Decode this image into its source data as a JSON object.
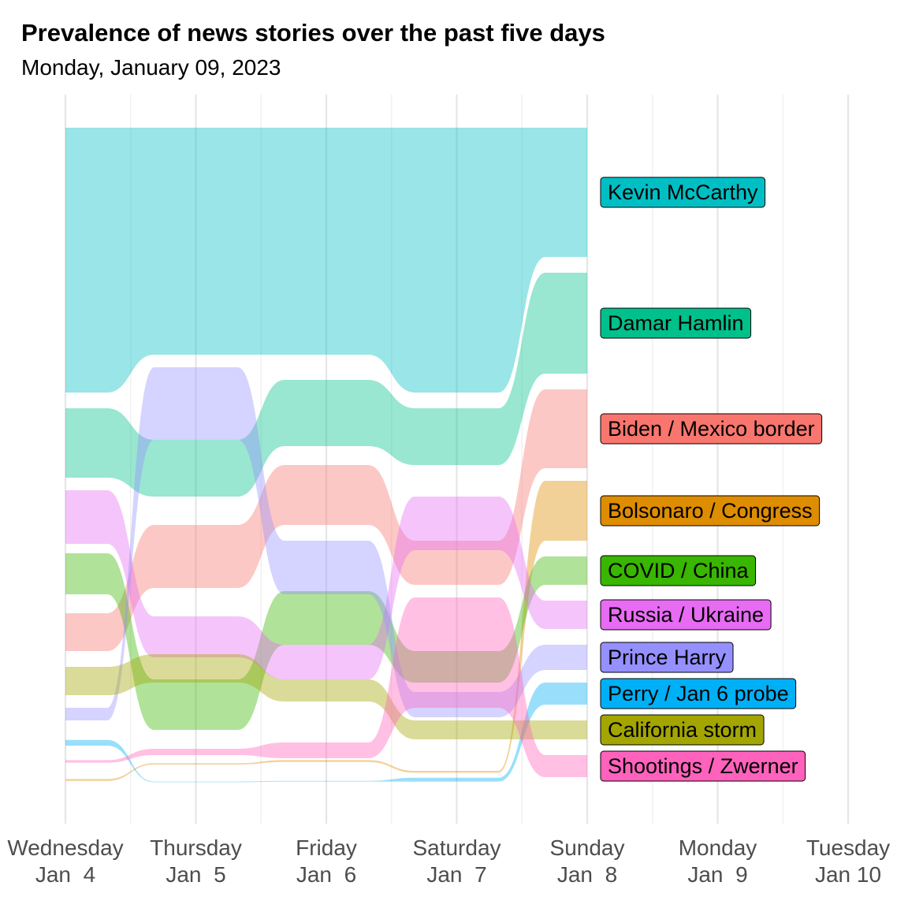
{
  "title": "Prevalence of news stories over the past five days",
  "subtitle": "Monday, January 09, 2023",
  "chart_data": {
    "type": "area",
    "subtype": "bump-streamgraph (stories ranked by daily prevalence, bands sized by prevalence)",
    "grid": true,
    "legend": "labels at right end of series",
    "x_ticks": [
      {
        "line1": "Wednesday",
        "line2": "Jan  4"
      },
      {
        "line1": "Thursday",
        "line2": "Jan  5"
      },
      {
        "line1": "Friday",
        "line2": "Jan  6"
      },
      {
        "line1": "Saturday",
        "line2": "Jan  7"
      },
      {
        "line1": "Sunday",
        "line2": "Jan  8"
      },
      {
        "line1": "Monday",
        "line2": "Jan  9"
      },
      {
        "line1": "Tuesday",
        "line2": "Jan 10"
      }
    ],
    "days_with_data": [
      "Jan 4",
      "Jan 5",
      "Jan 6",
      "Jan 7",
      "Jan 8"
    ],
    "y_range": [
      0,
      1
    ],
    "series": [
      {
        "name": "Kevin McCarthy",
        "color": "#00BFC4",
        "bands": [
          [
            0.0,
            0.42
          ],
          [
            0.0,
            0.36
          ],
          [
            0.0,
            0.36
          ],
          [
            0.0,
            0.42
          ],
          [
            0.0,
            0.205
          ]
        ]
      },
      {
        "name": "Damar Hamlin",
        "color": "#00C08B",
        "bands": [
          [
            0.445,
            0.555
          ],
          [
            0.495,
            0.585
          ],
          [
            0.4,
            0.505
          ],
          [
            0.445,
            0.535
          ],
          [
            0.23,
            0.39
          ]
        ]
      },
      {
        "name": "Biden / Mexico border",
        "color": "#F8766D",
        "bands": [
          [
            0.77,
            0.83
          ],
          [
            0.63,
            0.73
          ],
          [
            0.535,
            0.63
          ],
          [
            0.655,
            0.725
          ],
          [
            0.415,
            0.54
          ]
        ]
      },
      {
        "name": "Bolsonaro / Congress",
        "color": "#DE8C00",
        "bands": [
          [
            1.033,
            1.036
          ],
          [
            1.008,
            1.01
          ],
          [
            1.003,
            1.006
          ],
          [
            1.02,
            1.023
          ],
          [
            0.56,
            0.655
          ]
        ]
      },
      {
        "name": "COVID / China",
        "color": "#39B600",
        "bands": [
          [
            0.675,
            0.74
          ],
          [
            0.875,
            0.955
          ],
          [
            0.735,
            0.82
          ],
          [
            0.83,
            0.88
          ],
          [
            0.68,
            0.725
          ]
        ]
      },
      {
        "name": "Russia / Ukraine",
        "color": "#E76BF3",
        "bands": [
          [
            0.575,
            0.66
          ],
          [
            0.775,
            0.84
          ],
          [
            0.82,
            0.875
          ],
          [
            0.585,
            0.67
          ],
          [
            0.75,
            0.795
          ]
        ]
      },
      {
        "name": "Prince Harry",
        "color": "#9590FF",
        "bands": [
          [
            0.92,
            0.94
          ],
          [
            0.38,
            0.495
          ],
          [
            0.655,
            0.74
          ],
          [
            0.895,
            0.935
          ],
          [
            0.82,
            0.86
          ]
        ]
      },
      {
        "name": "Perry / Jan 6 probe",
        "color": "#00B0F6",
        "bands": [
          [
            0.971,
            0.98
          ],
          [
            1.037,
            1.038
          ],
          [
            1.036,
            1.037
          ],
          [
            1.031,
            1.037
          ],
          [
            0.88,
            0.915
          ]
        ]
      },
      {
        "name": "California storm",
        "color": "#A3A500",
        "bands": [
          [
            0.855,
            0.9
          ],
          [
            0.835,
            0.88
          ],
          [
            0.875,
            0.91
          ],
          [
            0.94,
            0.97
          ],
          [
            0.94,
            0.97
          ]
        ]
      },
      {
        "name": "Shootings / Zwerner",
        "color": "#FF62BC",
        "bands": [
          [
            1.003,
            1.007
          ],
          [
            0.985,
            0.995
          ],
          [
            0.975,
            1.0
          ],
          [
            0.745,
            0.92
          ],
          [
            0.995,
            1.03
          ]
        ]
      }
    ]
  }
}
